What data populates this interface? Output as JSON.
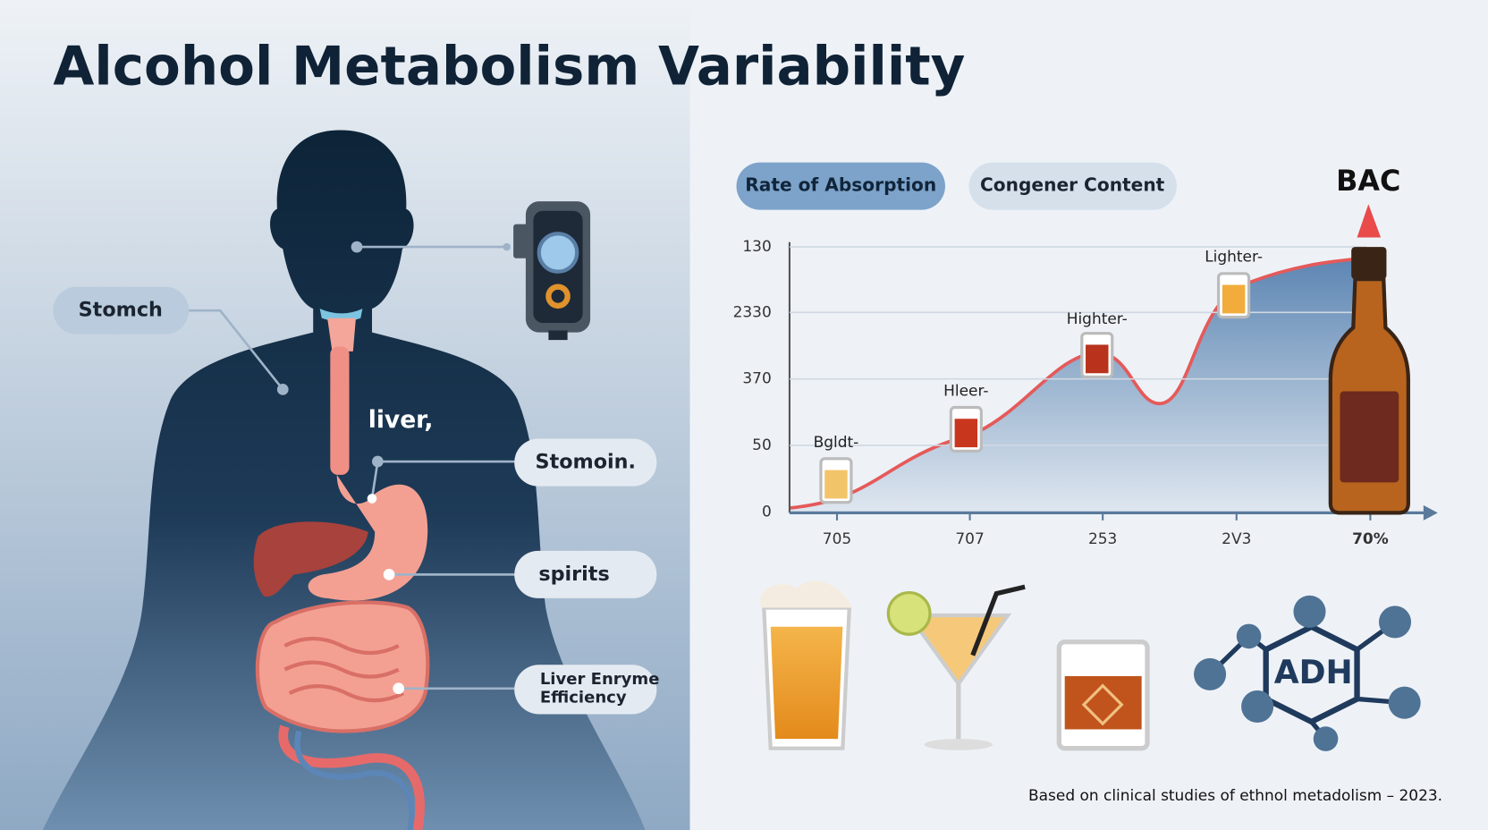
{
  "header": {
    "title": "Alcohol Metabolism Variability"
  },
  "body_labels": {
    "stomach": "Stomch",
    "liver": "liver,",
    "stomach_2": "Stomoin.",
    "spirits": "spirits",
    "enzyme": [
      "Liver Enryme",
      "Efficiency"
    ]
  },
  "tabs": [
    "Rate of Absorption",
    "Congener Content"
  ],
  "chart": {
    "corner_label": "BAC",
    "y_labels": [
      "130",
      "2330",
      "370",
      "50",
      "0"
    ],
    "x_labels": [
      "705",
      "707",
      "253",
      "2V3",
      "70%"
    ],
    "point_labels": [
      "Bgldt-",
      "Hleer-",
      "Highter-",
      "Lighter-"
    ]
  },
  "molecule": "ADH",
  "footer": "Based on clinical studies of ethnol metadolism – 2023."
}
